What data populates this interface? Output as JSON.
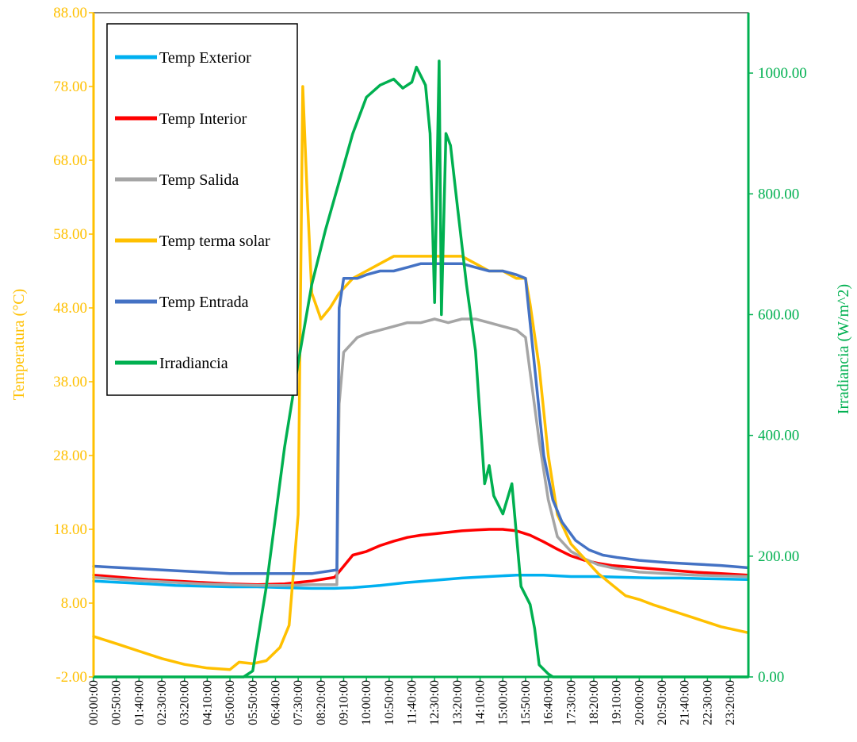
{
  "chart_data": {
    "type": "line",
    "xlabel": "",
    "ylabel_left": "Temperatura (°C)",
    "ylabel_right": "Irradiancia (W/m^2)",
    "ylim_left": [
      -2,
      88
    ],
    "ylim_right": [
      0,
      1100
    ],
    "xlim_hours": [
      0,
      24
    ],
    "grid": false,
    "legend_position": "top-left",
    "left_ticks": [
      "-2.00",
      "8.00",
      "18.00",
      "28.00",
      "38.00",
      "48.00",
      "58.00",
      "68.00",
      "78.00",
      "88.00"
    ],
    "right_ticks": [
      "0.00",
      "200.00",
      "400.00",
      "600.00",
      "800.00",
      "1000.00"
    ],
    "x_ticks": [
      "00:00:00",
      "00:50:00",
      "01:40:00",
      "02:30:00",
      "03:20:00",
      "04:10:00",
      "05:00:00",
      "05:50:00",
      "06:40:00",
      "07:30:00",
      "08:20:00",
      "09:10:00",
      "10:00:00",
      "10:50:00",
      "11:40:00",
      "12:30:00",
      "13:20:00",
      "14:10:00",
      "15:00:00",
      "15:50:00",
      "16:40:00",
      "17:30:00",
      "18:20:00",
      "19:10:00",
      "20:00:00",
      "20:50:00",
      "21:40:00",
      "22:30:00",
      "23:20:00"
    ],
    "series": [
      {
        "name": "Temp Exterior",
        "color": "#00b0f0",
        "axis": "left",
        "x": [
          "00:00:00",
          "01:00:00",
          "02:00:00",
          "03:00:00",
          "04:00:00",
          "05:00:00",
          "06:00:00",
          "07:00:00",
          "08:00:00",
          "08:50:00",
          "09:30:00",
          "10:30:00",
          "11:30:00",
          "12:30:00",
          "13:30:00",
          "14:30:00",
          "15:30:00",
          "16:30:00",
          "17:30:00",
          "18:30:00",
          "19:30:00",
          "20:30:00",
          "21:30:00",
          "22:30:00",
          "23:59:00"
        ],
        "y": [
          11.0,
          10.8,
          10.6,
          10.4,
          10.3,
          10.2,
          10.2,
          10.1,
          10.0,
          10.0,
          10.1,
          10.4,
          10.8,
          11.1,
          11.4,
          11.6,
          11.8,
          11.8,
          11.6,
          11.6,
          11.5,
          11.4,
          11.4,
          11.3,
          11.2
        ]
      },
      {
        "name": "Temp Interior",
        "color": "#ff0000",
        "axis": "left",
        "x": [
          "00:00:00",
          "01:00:00",
          "02:00:00",
          "03:00:00",
          "04:00:00",
          "05:00:00",
          "06:00:00",
          "07:00:00",
          "08:00:00",
          "08:50:00",
          "09:10:00",
          "09:30:00",
          "10:00:00",
          "10:30:00",
          "11:00:00",
          "11:30:00",
          "12:00:00",
          "12:30:00",
          "13:00:00",
          "13:30:00",
          "14:00:00",
          "14:30:00",
          "15:00:00",
          "15:30:00",
          "16:00:00",
          "16:30:00",
          "17:00:00",
          "17:30:00",
          "18:00:00",
          "18:30:00",
          "19:00:00",
          "20:00:00",
          "21:00:00",
          "22:00:00",
          "23:00:00",
          "23:59:00"
        ],
        "y": [
          11.8,
          11.5,
          11.2,
          11.0,
          10.8,
          10.6,
          10.5,
          10.6,
          11.0,
          11.5,
          13.0,
          14.5,
          15.0,
          15.8,
          16.4,
          16.9,
          17.2,
          17.4,
          17.6,
          17.8,
          17.9,
          18.0,
          18.0,
          17.8,
          17.2,
          16.3,
          15.3,
          14.4,
          13.8,
          13.4,
          13.1,
          12.8,
          12.5,
          12.2,
          12.0,
          11.8
        ]
      },
      {
        "name": "Temp Salida",
        "color": "#a5a5a5",
        "axis": "left",
        "x": [
          "00:00:00",
          "01:00:00",
          "02:00:00",
          "03:00:00",
          "04:00:00",
          "05:00:00",
          "06:00:00",
          "07:00:00",
          "08:00:00",
          "08:55:00",
          "09:00:00",
          "09:10:00",
          "09:40:00",
          "10:00:00",
          "10:30:00",
          "11:00:00",
          "11:30:00",
          "12:00:00",
          "12:30:00",
          "13:00:00",
          "13:30:00",
          "14:00:00",
          "14:30:00",
          "15:00:00",
          "15:30:00",
          "15:50:00",
          "16:20:00",
          "16:40:00",
          "17:00:00",
          "17:30:00",
          "18:00:00",
          "18:30:00",
          "19:00:00",
          "20:00:00",
          "21:00:00",
          "22:00:00",
          "23:00:00",
          "23:59:00"
        ],
        "y": [
          11.5,
          11.2,
          11.0,
          10.8,
          10.6,
          10.5,
          10.4,
          10.4,
          10.5,
          10.5,
          35.0,
          42.0,
          44.0,
          44.5,
          45.0,
          45.5,
          46.0,
          46.0,
          46.5,
          46.0,
          46.5,
          46.5,
          46.0,
          45.5,
          45.0,
          44.0,
          30.0,
          22.0,
          17.0,
          15.0,
          14.0,
          13.2,
          12.8,
          12.2,
          12.0,
          11.8,
          11.7,
          11.6
        ]
      },
      {
        "name": "Temp terma solar",
        "color": "#ffc000",
        "axis": "left",
        "x": [
          "00:00:00",
          "00:50:00",
          "01:40:00",
          "02:30:00",
          "03:20:00",
          "04:10:00",
          "05:00:00",
          "05:20:00",
          "05:50:00",
          "06:20:00",
          "06:50:00",
          "07:10:00",
          "07:30:00",
          "07:40:00",
          "07:50:00",
          "08:00:00",
          "08:20:00",
          "08:40:00",
          "09:00:00",
          "09:30:00",
          "10:00:00",
          "10:30:00",
          "11:00:00",
          "11:30:00",
          "12:00:00",
          "12:30:00",
          "13:00:00",
          "13:30:00",
          "14:00:00",
          "14:30:00",
          "15:00:00",
          "15:30:00",
          "15:50:00",
          "16:00:00",
          "16:20:00",
          "16:40:00",
          "17:00:00",
          "17:30:00",
          "18:00:00",
          "18:30:00",
          "19:00:00",
          "19:30:00",
          "20:00:00",
          "20:30:00",
          "21:00:00",
          "21:30:00",
          "22:00:00",
          "22:30:00",
          "23:00:00",
          "23:59:00"
        ],
        "y": [
          3.5,
          2.5,
          1.5,
          0.5,
          -0.3,
          -0.8,
          -1.0,
          0.0,
          -0.2,
          0.2,
          2.0,
          5.0,
          20.0,
          78.0,
          63.0,
          50.0,
          46.5,
          48.0,
          50.0,
          52.0,
          53.0,
          54.0,
          55.0,
          55.0,
          55.0,
          55.0,
          55.0,
          55.0,
          54.0,
          53.0,
          53.0,
          52.0,
          52.0,
          48.5,
          40.0,
          28.0,
          20.0,
          16.0,
          14.0,
          12.0,
          10.5,
          9.0,
          8.5,
          7.8,
          7.2,
          6.6,
          6.0,
          5.4,
          4.8,
          4.0
        ]
      },
      {
        "name": "Temp Entrada",
        "color": "#4472c4",
        "axis": "left",
        "x": [
          "00:00:00",
          "01:00:00",
          "02:00:00",
          "03:00:00",
          "04:00:00",
          "05:00:00",
          "06:00:00",
          "07:00:00",
          "08:00:00",
          "08:55:00",
          "09:00:00",
          "09:10:00",
          "09:40:00",
          "10:00:00",
          "10:30:00",
          "11:00:00",
          "11:30:00",
          "12:00:00",
          "12:30:00",
          "13:00:00",
          "13:30:00",
          "14:00:00",
          "14:30:00",
          "15:00:00",
          "15:30:00",
          "15:50:00",
          "16:10:00",
          "16:30:00",
          "16:50:00",
          "17:10:00",
          "17:40:00",
          "18:10:00",
          "18:40:00",
          "19:10:00",
          "20:00:00",
          "21:00:00",
          "22:00:00",
          "23:00:00",
          "23:59:00"
        ],
        "y": [
          13.0,
          12.8,
          12.6,
          12.4,
          12.2,
          12.0,
          12.0,
          12.0,
          12.0,
          12.5,
          48.0,
          52.0,
          52.0,
          52.5,
          53.0,
          53.0,
          53.5,
          54.0,
          54.0,
          54.0,
          54.0,
          53.5,
          53.0,
          53.0,
          52.5,
          52.0,
          40.0,
          28.0,
          22.0,
          19.0,
          16.5,
          15.2,
          14.5,
          14.2,
          13.8,
          13.5,
          13.3,
          13.1,
          12.8
        ]
      },
      {
        "name": "Irradiancia",
        "color": "#00b050",
        "axis": "right",
        "x": [
          "00:00:00",
          "05:30:00",
          "05:50:00",
          "06:20:00",
          "07:00:00",
          "07:30:00",
          "08:00:00",
          "08:30:00",
          "09:00:00",
          "09:30:00",
          "10:00:00",
          "10:30:00",
          "11:00:00",
          "11:20:00",
          "11:40:00",
          "11:50:00",
          "12:10:00",
          "12:20:00",
          "12:30:00",
          "12:40:00",
          "12:45:00",
          "12:55:00",
          "13:05:00",
          "13:20:00",
          "13:40:00",
          "14:00:00",
          "14:20:00",
          "14:30:00",
          "14:40:00",
          "15:00:00",
          "15:20:00",
          "15:40:00",
          "16:00:00",
          "16:10:00",
          "16:20:00",
          "16:40:00",
          "16:50:00",
          "17:00:00",
          "23:59:00"
        ],
        "y": [
          0,
          0,
          10,
          150,
          380,
          520,
          650,
          740,
          820,
          900,
          960,
          980,
          990,
          975,
          985,
          1010,
          980,
          900,
          620,
          1020,
          600,
          900,
          880,
          780,
          650,
          540,
          320,
          350,
          300,
          270,
          320,
          150,
          120,
          80,
          20,
          5,
          0,
          0,
          0
        ]
      }
    ]
  }
}
